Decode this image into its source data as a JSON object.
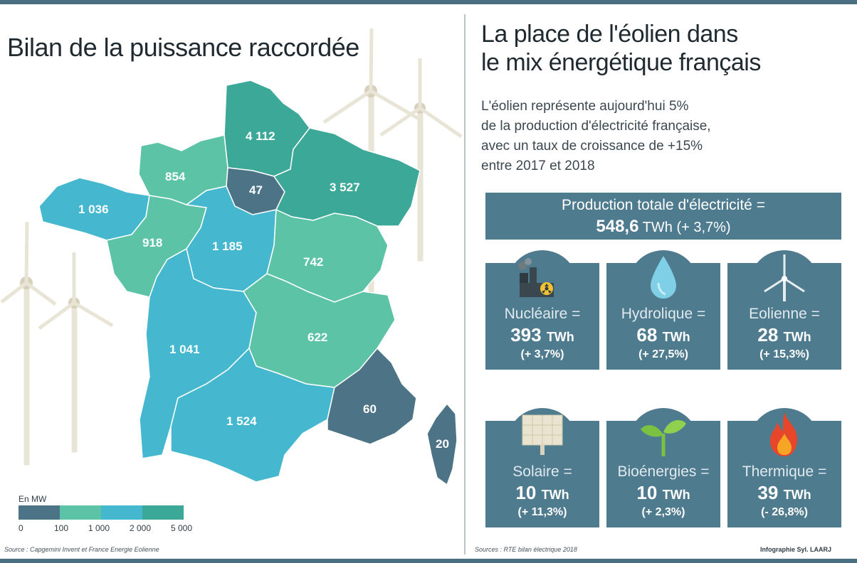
{
  "left": {
    "title": "Bilan de la puissance raccordée",
    "regions": [
      {
        "id": "hauts-de-france",
        "value": "4 112",
        "color": "#3ba898"
      },
      {
        "id": "normandie",
        "value": "854",
        "color": "#5cc3a7"
      },
      {
        "id": "ile-de-france",
        "value": "47",
        "color": "#4d7486"
      },
      {
        "id": "grand-est",
        "value": "3 527",
        "color": "#3ba898"
      },
      {
        "id": "bretagne",
        "value": "1 036",
        "color": "#45b8cf"
      },
      {
        "id": "pays-de-la-loire",
        "value": "918",
        "color": "#5cc3a7"
      },
      {
        "id": "centre-val-de-loire",
        "value": "1 185",
        "color": "#45b8cf"
      },
      {
        "id": "bourgogne-franche-comte",
        "value": "742",
        "color": "#5cc3a7"
      },
      {
        "id": "nouvelle-aquitaine",
        "value": "1 041",
        "color": "#45b8cf"
      },
      {
        "id": "auvergne-rhone-alpes",
        "value": "622",
        "color": "#5cc3a7"
      },
      {
        "id": "occitanie",
        "value": "1 524",
        "color": "#45b8cf"
      },
      {
        "id": "paca",
        "value": "60",
        "color": "#4d7486"
      },
      {
        "id": "corse",
        "value": "20",
        "color": "#4d7486"
      }
    ],
    "legend": {
      "title": "En MW",
      "colors": [
        "#4d7486",
        "#5cc3a7",
        "#45b8cf",
        "#3ba898"
      ],
      "ticks": [
        "0",
        "100",
        "1 000",
        "2 000",
        "5 000"
      ]
    },
    "source": "Source : Capgemini Invent et France Energie Eolienne"
  },
  "right": {
    "title_line1": "La place de l'éolien dans",
    "title_line2": "le mix énergétique français",
    "subtitle_line1": "L'éolien représente aujourd'hui 5%",
    "subtitle_line2": "de la production d'électricité française,",
    "subtitle_line3": "avec un taux de croissance de +15%",
    "subtitle_line4": "entre 2017 et 2018",
    "total": {
      "label": "Production totale d'électricité =",
      "value": "548,6",
      "unit": "TWh",
      "change": "(+ 3,7%)"
    },
    "sources": [
      {
        "name": "Nucléaire =",
        "value": "393",
        "unit": "TWh",
        "change": "(+ 3,7%)",
        "icon": "nuclear-plant-icon"
      },
      {
        "name": "Hydrolique =",
        "value": "68",
        "unit": "TWh",
        "change": "(+ 27,5%)",
        "icon": "water-drop-icon"
      },
      {
        "name": "Eolienne =",
        "value": "28",
        "unit": "TWh",
        "change": "(+ 15,3%)",
        "icon": "wind-turbine-icon"
      },
      {
        "name": "Solaire =",
        "value": "10",
        "unit": "TWh",
        "change": "(+ 11,3%)",
        "icon": "solar-panel-icon"
      },
      {
        "name": "Bioénergies =",
        "value": "10",
        "unit": "TWh",
        "change": "(+ 2,3%)",
        "icon": "sprout-icon"
      },
      {
        "name": "Thermique =",
        "value": "39",
        "unit": "TWh",
        "change": "(- 26,8%)",
        "icon": "flame-icon"
      }
    ],
    "source": "Sources : RTE bilan électrique 2018",
    "credit": "Infographie Syl. LAARJ"
  }
}
